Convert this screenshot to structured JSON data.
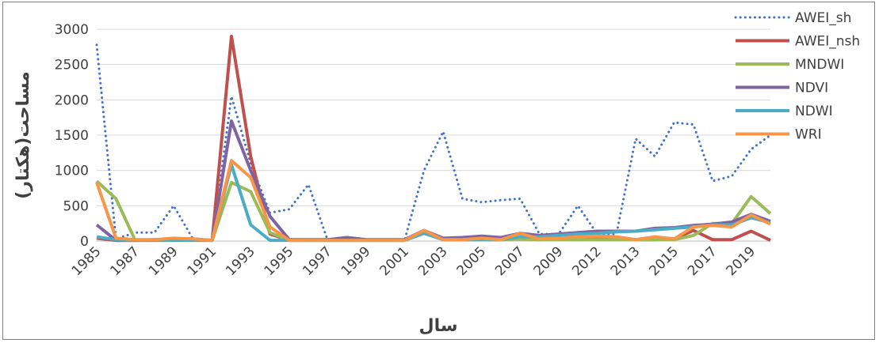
{
  "chart_data": {
    "type": "line",
    "xlabel": "سال",
    "ylabel": "مساحت(هکتار)",
    "ylim": [
      0,
      3000
    ],
    "yticks": [
      0,
      500,
      1000,
      1500,
      2000,
      2500,
      3000
    ],
    "x": [
      "1985",
      "1986",
      "1987",
      "1988",
      "1989",
      "1990",
      "1991",
      "1992",
      "1993",
      "1994",
      "1995",
      "1996",
      "1997",
      "1998",
      "1999",
      "2000",
      "2001",
      "2002",
      "2003",
      "2004",
      "2005",
      "2006",
      "2007",
      "2008",
      "2009",
      "2010",
      "2012",
      "2012",
      "2013",
      "2014",
      "2015",
      "2016",
      "2017",
      "2018",
      "2019",
      "2020"
    ],
    "xtick_labels": [
      "1985",
      "1987",
      "1989",
      "1991",
      "1993",
      "1995",
      "1997",
      "1999",
      "2001",
      "2003",
      "2005",
      "2007",
      "2009",
      "2012",
      "2013",
      "2015",
      "2017",
      "2019"
    ],
    "grid": true,
    "legend": "top-right",
    "series": [
      {
        "name": "AWEI_sh",
        "color": "#4472c4",
        "dash": "dotted",
        "values": [
          2780,
          30,
          120,
          120,
          500,
          30,
          10,
          2050,
          1100,
          400,
          450,
          800,
          10,
          10,
          10,
          10,
          20,
          1000,
          1550,
          600,
          550,
          580,
          600,
          100,
          100,
          500,
          100,
          100,
          1450,
          1200,
          1680,
          1650,
          850,
          920,
          1300,
          1500
        ]
      },
      {
        "name": "AWEI_nsh",
        "color": "#c0504d",
        "values": [
          40,
          10,
          10,
          10,
          30,
          20,
          10,
          2900,
          1200,
          100,
          10,
          10,
          10,
          10,
          10,
          10,
          10,
          150,
          20,
          20,
          20,
          20,
          30,
          20,
          30,
          30,
          30,
          30,
          20,
          20,
          30,
          150,
          20,
          20,
          140,
          10
        ]
      },
      {
        "name": "MNDWI",
        "color": "#9bbb59",
        "values": [
          850,
          600,
          10,
          10,
          10,
          10,
          10,
          830,
          700,
          120,
          10,
          10,
          10,
          10,
          10,
          10,
          10,
          130,
          20,
          20,
          20,
          20,
          30,
          20,
          20,
          20,
          20,
          20,
          20,
          20,
          20,
          80,
          250,
          250,
          630,
          390
        ]
      },
      {
        "name": "NDVI",
        "color": "#8064a2",
        "values": [
          230,
          10,
          10,
          20,
          30,
          30,
          10,
          1700,
          1000,
          350,
          20,
          20,
          20,
          50,
          20,
          20,
          20,
          150,
          40,
          50,
          70,
          50,
          110,
          80,
          100,
          120,
          140,
          140,
          140,
          180,
          190,
          220,
          240,
          270,
          380,
          280
        ]
      },
      {
        "name": "NDWI",
        "color": "#4bacc6",
        "values": [
          60,
          20,
          10,
          10,
          10,
          10,
          10,
          1080,
          230,
          10,
          10,
          10,
          10,
          10,
          10,
          10,
          10,
          110,
          20,
          20,
          20,
          20,
          60,
          60,
          80,
          100,
          110,
          130,
          140,
          160,
          180,
          200,
          230,
          230,
          330,
          260
        ]
      },
      {
        "name": "WRI",
        "color": "#f79646",
        "values": [
          830,
          40,
          20,
          20,
          40,
          30,
          10,
          1140,
          900,
          200,
          10,
          10,
          10,
          10,
          10,
          10,
          10,
          150,
          20,
          20,
          40,
          20,
          110,
          30,
          40,
          60,
          70,
          60,
          20,
          60,
          30,
          200,
          220,
          200,
          370,
          240
        ]
      }
    ]
  }
}
